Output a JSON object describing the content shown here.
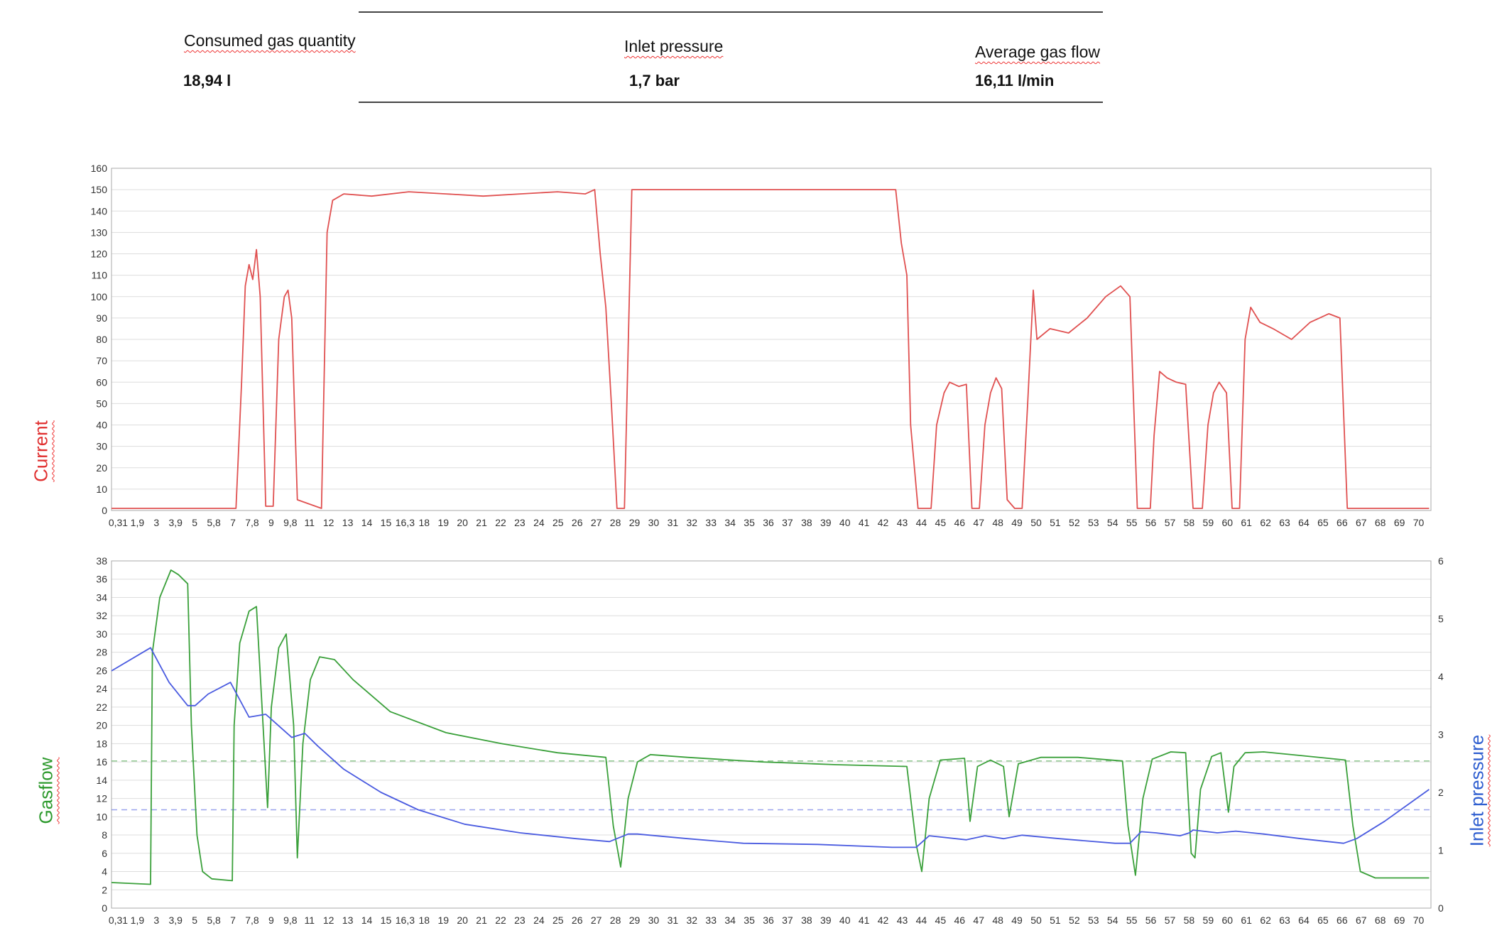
{
  "summary": {
    "items": [
      {
        "label": "Consumed gas quantity",
        "value": "18,94 l"
      },
      {
        "label": "Inlet pressure",
        "value": "1,7 bar"
      },
      {
        "label": "Average gas flow",
        "value": "16,11 l/min"
      }
    ]
  },
  "colors": {
    "current": "#e05050",
    "gasflow": "#3aa03a",
    "pressure": "#4a5be0",
    "grid": "#dddddd"
  },
  "chart_data": [
    {
      "type": "line",
      "ylabel": "Current",
      "ylim": [
        0,
        160
      ],
      "ytick_step": 10,
      "grid": true,
      "xlim": [
        0,
        71
      ],
      "x_tick_labels": [
        "0,31",
        "1,9",
        "3",
        "3,9",
        "5",
        "5,8",
        "7",
        "7,8",
        "9",
        "9,8",
        "11",
        "12",
        "13",
        "14",
        "15",
        "16,3",
        "18",
        "19",
        "20",
        "21",
        "22",
        "23",
        "24",
        "25",
        "26",
        "27",
        "28",
        "29",
        "30",
        "31",
        "32",
        "33",
        "34",
        "35",
        "36",
        "37",
        "38",
        "39",
        "40",
        "41",
        "42",
        "43",
        "44",
        "45",
        "46",
        "47",
        "48",
        "49",
        "50",
        "51",
        "52",
        "53",
        "54",
        "55",
        "56",
        "57",
        "58",
        "59",
        "60",
        "61",
        "62",
        "63",
        "64",
        "65",
        "66",
        "67",
        "68",
        "69",
        "70"
      ],
      "series": [
        {
          "color": "#e05050",
          "points": [
            [
              0,
              1
            ],
            [
              6.7,
              1
            ],
            [
              7.0,
              60
            ],
            [
              7.2,
              105
            ],
            [
              7.4,
              115
            ],
            [
              7.6,
              108
            ],
            [
              7.8,
              122
            ],
            [
              8.0,
              100
            ],
            [
              8.3,
              2
            ],
            [
              8.7,
              2
            ],
            [
              9.0,
              80
            ],
            [
              9.3,
              100
            ],
            [
              9.5,
              103
            ],
            [
              9.7,
              90
            ],
            [
              10.0,
              5
            ],
            [
              11.3,
              1
            ],
            [
              11.6,
              130
            ],
            [
              11.9,
              145
            ],
            [
              12.5,
              148
            ],
            [
              14,
              147
            ],
            [
              16,
              149
            ],
            [
              18,
              148
            ],
            [
              20,
              147
            ],
            [
              22,
              148
            ],
            [
              24,
              149
            ],
            [
              25.5,
              148
            ],
            [
              26.0,
              150
            ],
            [
              26.3,
              120
            ],
            [
              26.6,
              95
            ],
            [
              26.9,
              50
            ],
            [
              27.2,
              1
            ],
            [
              27.6,
              1
            ],
            [
              28.0,
              150
            ],
            [
              33,
              150
            ],
            [
              38,
              150
            ],
            [
              42.2,
              150
            ],
            [
              42.5,
              125
            ],
            [
              42.8,
              110
            ],
            [
              43.0,
              40
            ],
            [
              43.4,
              1
            ],
            [
              44.1,
              1
            ],
            [
              44.4,
              40
            ],
            [
              44.8,
              55
            ],
            [
              45.1,
              60
            ],
            [
              45.6,
              58
            ],
            [
              46.0,
              59
            ],
            [
              46.3,
              1
            ],
            [
              46.7,
              1
            ],
            [
              47.0,
              40
            ],
            [
              47.3,
              55
            ],
            [
              47.6,
              62
            ],
            [
              47.9,
              57
            ],
            [
              48.2,
              5
            ],
            [
              48.6,
              1
            ],
            [
              49.0,
              1
            ],
            [
              49.3,
              50
            ],
            [
              49.6,
              103
            ],
            [
              49.8,
              80
            ],
            [
              50.5,
              85
            ],
            [
              51.5,
              83
            ],
            [
              52.5,
              90
            ],
            [
              53.5,
              100
            ],
            [
              54.3,
              105
            ],
            [
              54.8,
              100
            ],
            [
              55.2,
              1
            ],
            [
              55.9,
              1
            ],
            [
              56.1,
              35
            ],
            [
              56.4,
              65
            ],
            [
              56.8,
              62
            ],
            [
              57.3,
              60
            ],
            [
              57.8,
              59
            ],
            [
              58.2,
              1
            ],
            [
              58.7,
              1
            ],
            [
              59.0,
              40
            ],
            [
              59.3,
              55
            ],
            [
              59.6,
              60
            ],
            [
              60.0,
              55
            ],
            [
              60.3,
              1
            ],
            [
              60.7,
              1
            ],
            [
              61.0,
              80
            ],
            [
              61.3,
              95
            ],
            [
              61.8,
              88
            ],
            [
              62.5,
              85
            ],
            [
              63.5,
              80
            ],
            [
              64.5,
              88
            ],
            [
              65.5,
              92
            ],
            [
              66.1,
              90
            ],
            [
              66.5,
              1
            ],
            [
              70.9,
              1
            ]
          ]
        }
      ]
    },
    {
      "type": "line",
      "ylabel": "Gasflow",
      "ylabel_right": "Inlet pressure",
      "ylim": [
        0,
        38
      ],
      "ytick_step": 2,
      "ylim_right": [
        0,
        6
      ],
      "ytick_step_right": 1,
      "grid": true,
      "xlim": [
        0,
        71
      ],
      "x_tick_labels": [
        "0,31",
        "1,9",
        "3",
        "3,9",
        "5",
        "5,8",
        "7",
        "7,8",
        "9",
        "9,8",
        "11",
        "12",
        "13",
        "14",
        "15",
        "16,3",
        "18",
        "19",
        "20",
        "21",
        "22",
        "23",
        "24",
        "25",
        "26",
        "27",
        "28",
        "29",
        "30",
        "31",
        "32",
        "33",
        "34",
        "35",
        "36",
        "37",
        "38",
        "39",
        "40",
        "41",
        "42",
        "43",
        "44",
        "45",
        "46",
        "47",
        "48",
        "49",
        "50",
        "51",
        "52",
        "53",
        "54",
        "55",
        "56",
        "57",
        "58",
        "59",
        "60",
        "61",
        "62",
        "63",
        "64",
        "65",
        "66",
        "67",
        "68",
        "69",
        "70"
      ],
      "reference_lines": [
        {
          "axis": "left",
          "value": 16.11,
          "color": "#3aa03a"
        },
        {
          "axis": "right",
          "value": 1.7,
          "color": "#4a5be0"
        }
      ],
      "series": [
        {
          "color": "#3aa03a",
          "axis": "left",
          "points": [
            [
              0,
              2.8
            ],
            [
              2.1,
              2.6
            ],
            [
              2.2,
              28
            ],
            [
              2.6,
              34
            ],
            [
              3.2,
              37
            ],
            [
              3.6,
              36.5
            ],
            [
              4.1,
              35.5
            ],
            [
              4.3,
              20
            ],
            [
              4.6,
              8
            ],
            [
              4.9,
              4
            ],
            [
              5.4,
              3.2
            ],
            [
              6.5,
              3
            ],
            [
              6.6,
              20
            ],
            [
              6.9,
              29
            ],
            [
              7.4,
              32.5
            ],
            [
              7.8,
              33
            ],
            [
              8.1,
              22
            ],
            [
              8.4,
              11
            ],
            [
              8.6,
              22
            ],
            [
              9.0,
              28.5
            ],
            [
              9.4,
              30
            ],
            [
              9.8,
              20
            ],
            [
              10.0,
              5.5
            ],
            [
              10.3,
              18
            ],
            [
              10.7,
              25
            ],
            [
              11.2,
              27.5
            ],
            [
              12,
              27.2
            ],
            [
              13,
              25
            ],
            [
              15,
              21.5
            ],
            [
              18,
              19.2
            ],
            [
              21,
              18
            ],
            [
              24,
              17
            ],
            [
              26.6,
              16.5
            ],
            [
              27.0,
              9
            ],
            [
              27.4,
              4.5
            ],
            [
              27.8,
              12
            ],
            [
              28.3,
              16
            ],
            [
              29,
              16.8
            ],
            [
              31,
              16.5
            ],
            [
              35,
              16
            ],
            [
              39,
              15.7
            ],
            [
              42.8,
              15.5
            ],
            [
              43.3,
              7
            ],
            [
              43.6,
              4
            ],
            [
              44.0,
              12
            ],
            [
              44.6,
              16.2
            ],
            [
              45.9,
              16.4
            ],
            [
              46.2,
              9.5
            ],
            [
              46.6,
              15.5
            ],
            [
              47.3,
              16.2
            ],
            [
              48.0,
              15.5
            ],
            [
              48.3,
              10
            ],
            [
              48.8,
              15.8
            ],
            [
              50,
              16.5
            ],
            [
              52,
              16.5
            ],
            [
              54.4,
              16.1
            ],
            [
              54.7,
              9
            ],
            [
              55.1,
              3.6
            ],
            [
              55.5,
              12
            ],
            [
              56.0,
              16.3
            ],
            [
              57.0,
              17.1
            ],
            [
              57.8,
              17
            ],
            [
              58.1,
              6
            ],
            [
              58.3,
              5.5
            ],
            [
              58.6,
              13
            ],
            [
              59.2,
              16.6
            ],
            [
              59.7,
              17
            ],
            [
              60.1,
              10.5
            ],
            [
              60.4,
              15.5
            ],
            [
              61.0,
              17.0
            ],
            [
              62,
              17.1
            ],
            [
              64,
              16.7
            ],
            [
              66.4,
              16.2
            ],
            [
              66.8,
              9
            ],
            [
              67.2,
              4
            ],
            [
              68,
              3.3
            ],
            [
              70.9,
              3.3
            ]
          ]
        },
        {
          "color": "#4a5be0",
          "axis": "right",
          "points": [
            [
              0,
              4.1
            ],
            [
              2.1,
              4.5
            ],
            [
              3.1,
              3.9
            ],
            [
              4.1,
              3.5
            ],
            [
              4.5,
              3.5
            ],
            [
              5.2,
              3.7
            ],
            [
              6.4,
              3.9
            ],
            [
              7.4,
              3.3
            ],
            [
              8.3,
              3.35
            ],
            [
              9.0,
              3.15
            ],
            [
              9.7,
              2.95
            ],
            [
              10.4,
              3.02
            ],
            [
              11.1,
              2.8
            ],
            [
              12.5,
              2.4
            ],
            [
              14.5,
              2
            ],
            [
              16.5,
              1.7
            ],
            [
              19,
              1.45
            ],
            [
              22,
              1.3
            ],
            [
              25,
              1.2
            ],
            [
              26.8,
              1.15
            ],
            [
              27.8,
              1.28
            ],
            [
              28.3,
              1.28
            ],
            [
              31,
              1.2
            ],
            [
              34,
              1.12
            ],
            [
              38,
              1.1
            ],
            [
              42,
              1.05
            ],
            [
              43.3,
              1.05
            ],
            [
              44.0,
              1.25
            ],
            [
              46,
              1.18
            ],
            [
              47,
              1.25
            ],
            [
              48,
              1.2
            ],
            [
              49,
              1.26
            ],
            [
              51,
              1.2
            ],
            [
              54,
              1.12
            ],
            [
              54.8,
              1.12
            ],
            [
              55.4,
              1.32
            ],
            [
              56.2,
              1.3
            ],
            [
              57.5,
              1.25
            ],
            [
              58.0,
              1.3
            ],
            [
              58.2,
              1.35
            ],
            [
              59.5,
              1.3
            ],
            [
              60.5,
              1.33
            ],
            [
              62,
              1.28
            ],
            [
              64,
              1.2
            ],
            [
              66.3,
              1.12
            ],
            [
              67,
              1.2
            ],
            [
              68.5,
              1.5
            ],
            [
              70.9,
              2.05
            ]
          ]
        }
      ]
    }
  ]
}
